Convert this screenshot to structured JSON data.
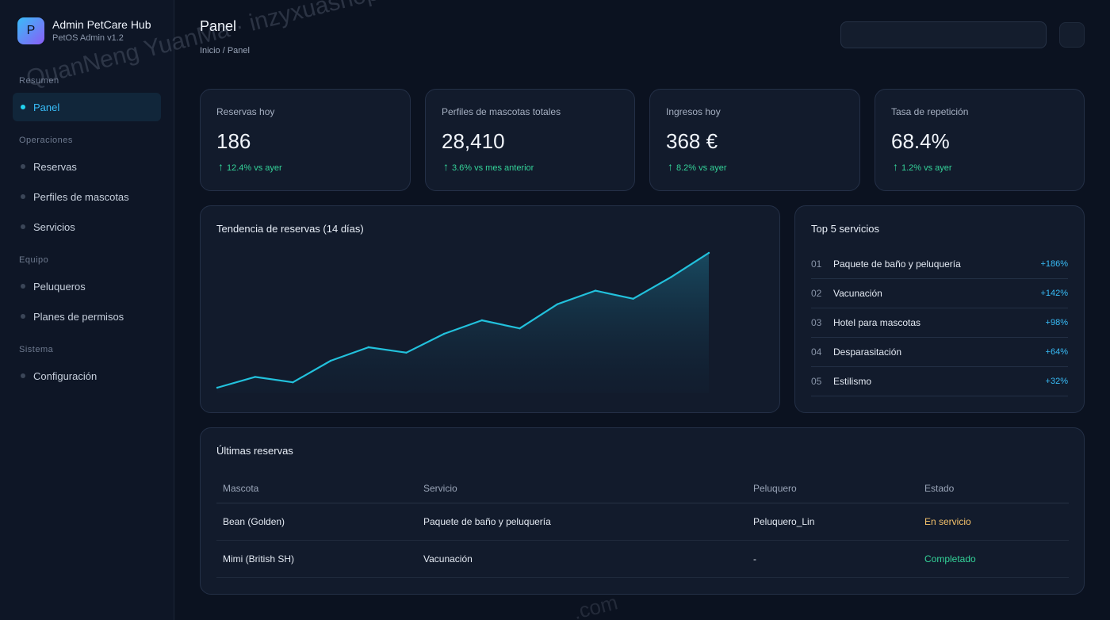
{
  "brand": {
    "logo_letter": "P",
    "title": "Admin PetCare Hub",
    "subtitle": "PetOS Admin v1.2"
  },
  "sidebar": {
    "sections": [
      "Resumen",
      "Operaciones",
      "Equipo",
      "Sistema"
    ],
    "items": [
      "Panel",
      "Reservas",
      "Perfiles de mascotas",
      "Servicios",
      "Peluqueros",
      "Planes de permisos",
      "Configuración"
    ],
    "active_item": "Panel"
  },
  "header": {
    "title": "Panel",
    "breadcrumb": "Inicio / Panel"
  },
  "stats": [
    {
      "label": "Reservas hoy",
      "value": "186",
      "change": "12.4% vs ayer"
    },
    {
      "label": "Perfiles de mascotas totales",
      "value": "28,410",
      "change": "3.6% vs mes anterior"
    },
    {
      "label": "Ingresos hoy",
      "value": "368 €",
      "change": "8.2% vs ayer"
    },
    {
      "label": "Tasa de repetición",
      "value": "68.4%",
      "change": "1.2% vs ayer"
    }
  ],
  "trend": {
    "title": "Tendencia de reservas (14 días)"
  },
  "chart_data": {
    "type": "area",
    "title": "Tendencia de reservas (14 días)",
    "x": [
      1,
      2,
      3,
      4,
      5,
      6,
      7,
      8,
      9,
      10,
      11,
      12,
      13,
      14
    ],
    "values": [
      0,
      8,
      4,
      20,
      30,
      26,
      40,
      50,
      44,
      62,
      72,
      66,
      82,
      100
    ],
    "grid": false,
    "color": "#22c1dc"
  },
  "top_services": {
    "title": "Top 5 servicios",
    "items": [
      {
        "rank": "01",
        "name": "Paquete de baño y peluquería",
        "pct": "+186%"
      },
      {
        "rank": "02",
        "name": "Vacunación",
        "pct": "+142%"
      },
      {
        "rank": "03",
        "name": "Hotel para mascotas",
        "pct": "+98%"
      },
      {
        "rank": "04",
        "name": "Desparasitación",
        "pct": "+64%"
      },
      {
        "rank": "05",
        "name": "Estilismo",
        "pct": "+32%"
      }
    ]
  },
  "bookings": {
    "title": "Últimas reservas",
    "headers": [
      "Mascota",
      "Servicio",
      "Peluquero",
      "Estado"
    ],
    "rows": [
      {
        "pet": "Bean (Golden)",
        "service": "Paquete de baño y peluquería",
        "groomer": "Peluquero_Lin",
        "status": "En servicio"
      },
      {
        "pet": "Mimi (British SH)",
        "service": "Vacunación",
        "groomer": "-",
        "status": "Completado"
      }
    ]
  },
  "watermark": {
    "text": "QuanNeng YuanMa · inzyxuashop.com",
    "text2": ".com"
  },
  "colors": {
    "accent": "#38bdf8",
    "positive": "#34d399",
    "warning": "#f5c26b",
    "background": "#0b1220"
  }
}
